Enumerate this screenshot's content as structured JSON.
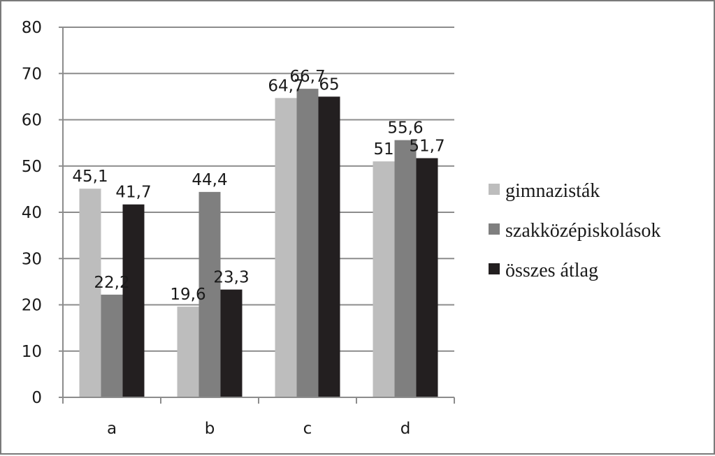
{
  "chart_data": {
    "type": "bar",
    "title": "",
    "xlabel": "",
    "ylabel": "",
    "categories": [
      "a",
      "b",
      "c",
      "d"
    ],
    "ylim": [
      0,
      80
    ],
    "yticks": [
      0,
      10,
      20,
      30,
      40,
      50,
      60,
      70,
      80
    ],
    "grid": true,
    "legend_position": "right",
    "series": [
      {
        "name": "gimnazisták",
        "color": "#bdbdbd",
        "values": [
          45.1,
          19.6,
          64.7,
          51
        ],
        "labels": [
          "45,1",
          "19,6",
          "64,7",
          "51"
        ]
      },
      {
        "name": "szakközépiskolások",
        "color": "#7f7f7f",
        "values": [
          22.2,
          44.4,
          66.7,
          55.6
        ],
        "labels": [
          "22,2",
          "44,4",
          "66,7",
          "55,6"
        ]
      },
      {
        "name": "összes átlag",
        "color": "#231f20",
        "values": [
          41.7,
          23.3,
          65,
          51.7
        ],
        "labels": [
          "41,7",
          "23,3",
          "65",
          "51,7"
        ]
      }
    ]
  }
}
